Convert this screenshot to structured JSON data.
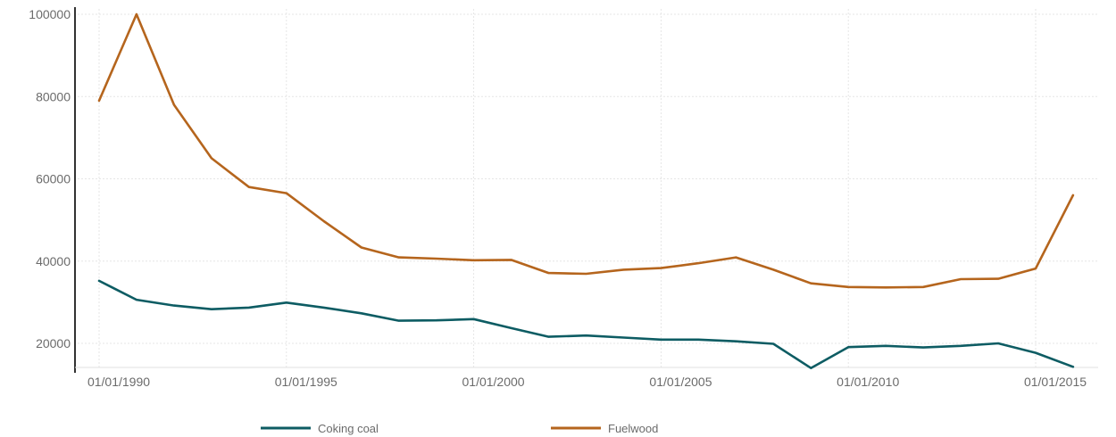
{
  "chart_data": {
    "type": "line",
    "title": "",
    "xlabel": "",
    "ylabel": "",
    "x_tick_labels": [
      "01/01/1990",
      "01/01/1995",
      "01/01/2000",
      "01/01/2005",
      "01/01/2010",
      "01/01/2015"
    ],
    "y_tick_labels": [
      "20000",
      "40000",
      "60000",
      "80000",
      "100000"
    ],
    "y_ticks": [
      20000,
      40000,
      60000,
      80000,
      100000
    ],
    "ylim": [
      13000,
      101000
    ],
    "xlim": [
      "1989-06-01",
      "2016-12-31"
    ],
    "grid": true,
    "legend_position": "bottom",
    "series": [
      {
        "name": "Coking coal",
        "color": "#0d5c63",
        "points": [
          {
            "x": "1990-01-01",
            "y": 35200
          },
          {
            "x": "1991-01-01",
            "y": 30600
          },
          {
            "x": "1992-01-01",
            "y": 29200
          },
          {
            "x": "1993-01-01",
            "y": 28300
          },
          {
            "x": "1994-01-01",
            "y": 28700
          },
          {
            "x": "1995-01-01",
            "y": 29900
          },
          {
            "x": "1996-01-01",
            "y": 28700
          },
          {
            "x": "1997-01-01",
            "y": 27300
          },
          {
            "x": "1998-01-01",
            "y": 25500
          },
          {
            "x": "1999-01-01",
            "y": 25600
          },
          {
            "x": "2000-01-01",
            "y": 25900
          },
          {
            "x": "2001-01-01",
            "y": 23700
          },
          {
            "x": "2002-01-01",
            "y": 21600
          },
          {
            "x": "2003-01-01",
            "y": 21900
          },
          {
            "x": "2004-01-01",
            "y": 21400
          },
          {
            "x": "2005-01-01",
            "y": 20900
          },
          {
            "x": "2006-01-01",
            "y": 20900
          },
          {
            "x": "2007-01-01",
            "y": 20500
          },
          {
            "x": "2008-01-01",
            "y": 19900
          },
          {
            "x": "2009-01-01",
            "y": 14000
          },
          {
            "x": "2010-01-01",
            "y": 19100
          },
          {
            "x": "2011-01-01",
            "y": 19400
          },
          {
            "x": "2012-01-01",
            "y": 19000
          },
          {
            "x": "2013-01-01",
            "y": 19400
          },
          {
            "x": "2014-01-01",
            "y": 20000
          },
          {
            "x": "2015-01-01",
            "y": 17700
          },
          {
            "x": "2016-01-01",
            "y": 14300
          }
        ]
      },
      {
        "name": "Fuelwood",
        "color": "#b5651d",
        "points": [
          {
            "x": "1990-01-01",
            "y": 79000
          },
          {
            "x": "1991-01-01",
            "y": 100000
          },
          {
            "x": "1992-01-01",
            "y": 78000
          },
          {
            "x": "1993-01-01",
            "y": 65000
          },
          {
            "x": "1994-01-01",
            "y": 58000
          },
          {
            "x": "1995-01-01",
            "y": 56500
          },
          {
            "x": "1996-01-01",
            "y": 49700
          },
          {
            "x": "1997-01-01",
            "y": 43300
          },
          {
            "x": "1998-01-01",
            "y": 40900
          },
          {
            "x": "1999-01-01",
            "y": 40600
          },
          {
            "x": "2000-01-01",
            "y": 40200
          },
          {
            "x": "2001-01-01",
            "y": 40300
          },
          {
            "x": "2002-01-01",
            "y": 37100
          },
          {
            "x": "2003-01-01",
            "y": 36900
          },
          {
            "x": "2004-01-01",
            "y": 37900
          },
          {
            "x": "2005-01-01",
            "y": 38300
          },
          {
            "x": "2006-01-01",
            "y": 39500
          },
          {
            "x": "2007-01-01",
            "y": 40900
          },
          {
            "x": "2008-01-01",
            "y": 37900
          },
          {
            "x": "2009-01-01",
            "y": 34600
          },
          {
            "x": "2010-01-01",
            "y": 33700
          },
          {
            "x": "2011-01-01",
            "y": 33600
          },
          {
            "x": "2012-01-01",
            "y": 33700
          },
          {
            "x": "2013-01-01",
            "y": 35600
          },
          {
            "x": "2014-01-01",
            "y": 35700
          },
          {
            "x": "2015-01-01",
            "y": 38200
          },
          {
            "x": "2016-01-01",
            "y": 56000
          }
        ]
      }
    ]
  }
}
